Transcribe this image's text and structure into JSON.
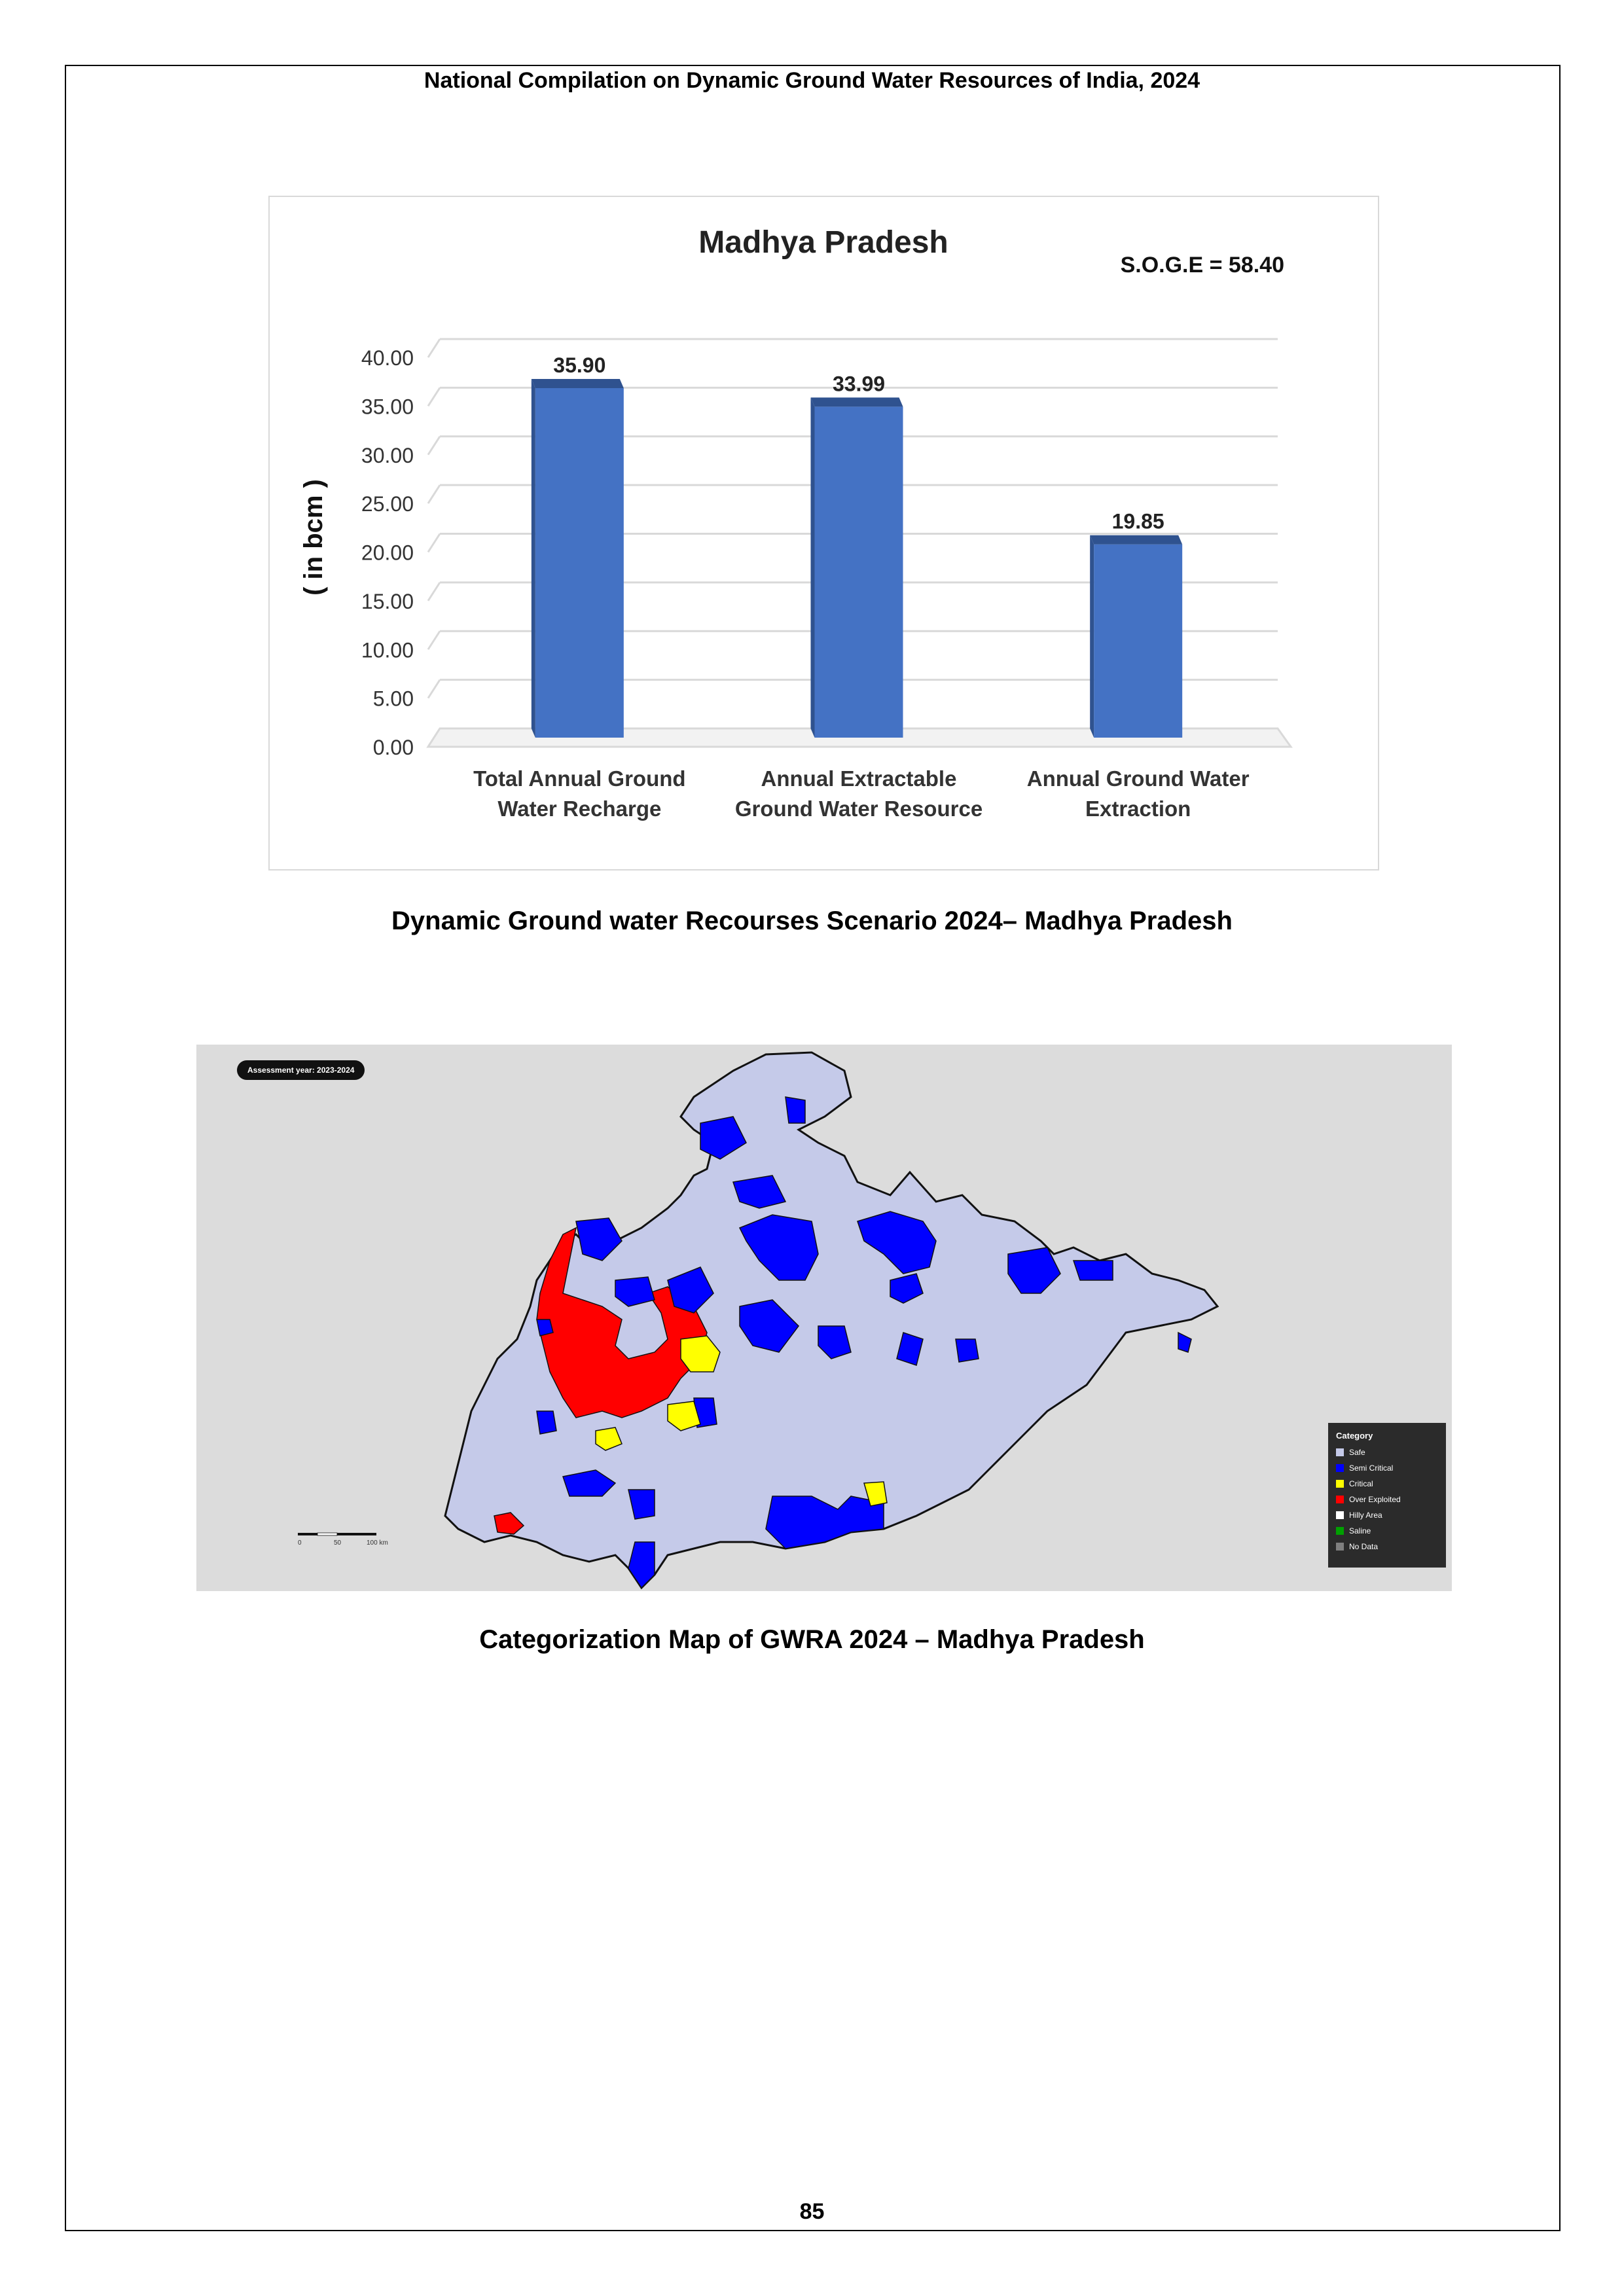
{
  "header": "National Compilation on Dynamic Ground Water Resources of India, 2024",
  "chart_data": {
    "type": "bar",
    "title": "Madhya Pradesh",
    "annotation": "S.O.G.E = 58.40",
    "ylabel": "( in bcm )",
    "xlabel": "",
    "ylim": [
      0,
      40
    ],
    "yticks": [
      "0.00",
      "5.00",
      "10.00",
      "15.00",
      "20.00",
      "25.00",
      "30.00",
      "35.00",
      "40.00"
    ],
    "categories": [
      [
        "Total Annual  Ground",
        "Water Recharge"
      ],
      [
        "Annual Extractable",
        "Ground Water Resource"
      ],
      [
        "Annual Ground Water",
        "Extraction"
      ]
    ],
    "values": [
      35.9,
      33.99,
      19.85
    ],
    "value_labels": [
      "35.90",
      "33.99",
      "19.85"
    ],
    "bar_color": "#4472c4",
    "grid": true,
    "legend": "none"
  },
  "chart_caption": "Dynamic Ground water Recourses Scenario 2024– Madhya Pradesh",
  "map": {
    "assessment_label": "Assessment year: 2023-2024",
    "background_color": "#dcdcdc",
    "legend_title": "Category",
    "legend": [
      {
        "label": "Safe",
        "color": "#c5cae9"
      },
      {
        "label": "Semi Critical",
        "color": "#0000ff"
      },
      {
        "label": "Critical",
        "color": "#ffff00"
      },
      {
        "label": "Over Exploited",
        "color": "#ff0000"
      },
      {
        "label": "Hilly Area",
        "color": "#ffffff"
      },
      {
        "label": "Saline",
        "color": "#00a000"
      },
      {
        "label": "No Data",
        "color": "#7f7f7f"
      }
    ],
    "scale_labels": [
      "0",
      "50",
      "100 km"
    ]
  },
  "map_caption": "Categorization Map of GWRA 2024 – Madhya Pradesh",
  "page_number": "85"
}
